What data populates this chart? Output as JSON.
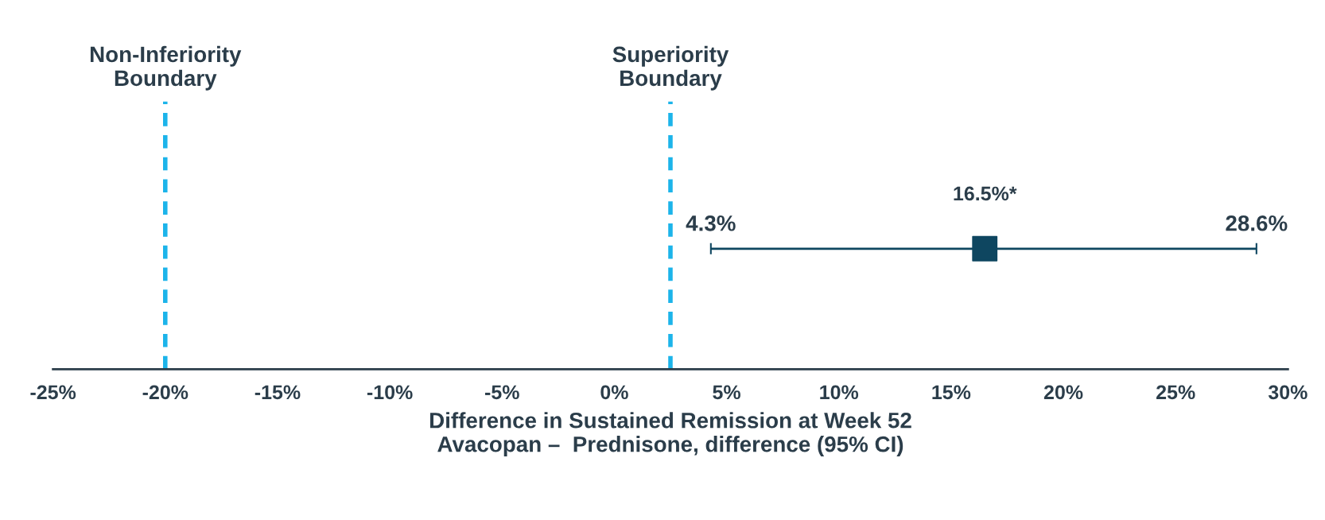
{
  "chart_data": {
    "type": "scatter",
    "orientation": "horizontal",
    "categories": [
      null
    ],
    "values": [
      16.5
    ],
    "errors": [
      [
        4.3,
        28.6
      ]
    ],
    "value_labels": [
      "16.5%*"
    ],
    "color": "#0e4660",
    "marker": "square",
    "xlim": [
      -25,
      30
    ],
    "xticks": [
      {
        "value": -25,
        "label": "-25%"
      },
      {
        "value": -20,
        "label": "-20%"
      },
      {
        "value": -15,
        "label": "-15%"
      },
      {
        "value": -10,
        "label": "-10%"
      },
      {
        "value": -5,
        "label": "-5%"
      },
      {
        "value": 0,
        "label": "0%"
      },
      {
        "value": 5,
        "label": "5%"
      },
      {
        "value": 10,
        "label": "10%"
      },
      {
        "value": 15,
        "label": "15%"
      },
      {
        "value": 20,
        "label": "20%"
      },
      {
        "value": 25,
        "label": "25%"
      },
      {
        "value": 30,
        "label": "30%"
      }
    ],
    "xlabel": "Difference in Sustained Remission at Week 52\nAvacopan –  Prednisone, difference (95% CI)",
    "ref_lines": [
      {
        "axis": "x",
        "value": -20,
        "label": "Non-Inferiority\nBoundary",
        "color": "#1cb4ea",
        "line_style": "dashed"
      },
      {
        "axis": "x",
        "value": 2.5,
        "label": "Superiority\nBoundary",
        "color": "#1cb4ea",
        "line_style": "dashed"
      }
    ],
    "annotations": [
      "4.3%",
      "28.6%"
    ],
    "tick_labels": "x",
    "grid": false,
    "legend": false
  }
}
